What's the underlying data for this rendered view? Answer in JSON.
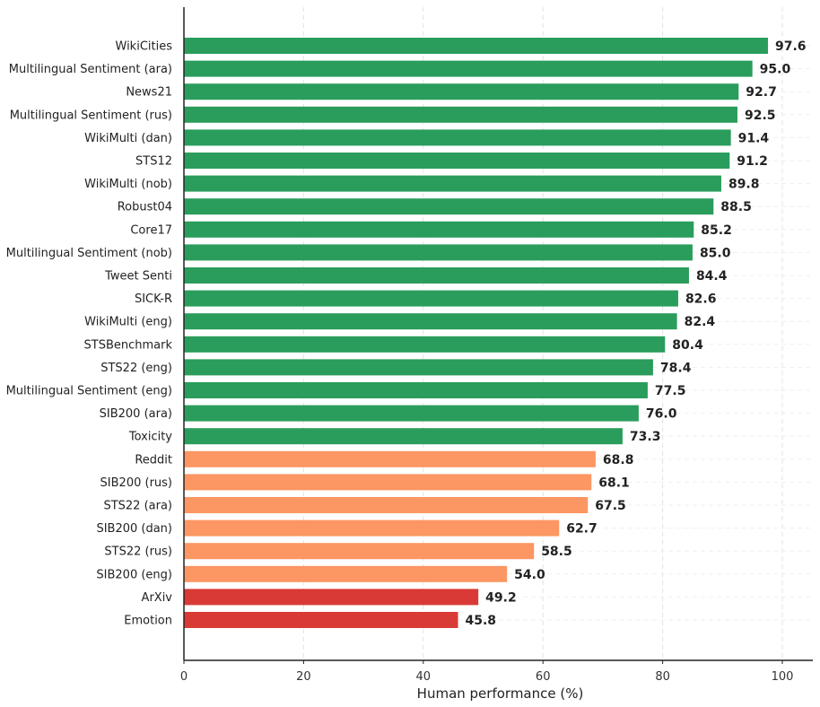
{
  "chart_data": {
    "type": "bar",
    "orientation": "horizontal",
    "title": "",
    "xlabel": "Human performance (%)",
    "ylabel": "",
    "xlim": [
      0,
      105
    ],
    "xticks": [
      0,
      20,
      40,
      60,
      80,
      100
    ],
    "grid": true,
    "categories": [
      "WikiCities",
      "Multilingual Sentiment (ara)",
      "News21",
      "Multilingual Sentiment (rus)",
      "WikiMulti (dan)",
      "STS12",
      "WikiMulti (nob)",
      "Robust04",
      "Core17",
      "Multilingual Sentiment (nob)",
      "Tweet Senti",
      "SICK-R",
      "WikiMulti (eng)",
      "STSBenchmark",
      "STS22 (eng)",
      "Multilingual Sentiment (eng)",
      "SIB200 (ara)",
      "Toxicity",
      "Reddit",
      "SIB200 (rus)",
      "STS22 (ara)",
      "SIB200 (dan)",
      "STS22 (rus)",
      "SIB200 (eng)",
      "ArXiv",
      "Emotion"
    ],
    "values": [
      97.6,
      95.0,
      92.7,
      92.5,
      91.4,
      91.2,
      89.8,
      88.5,
      85.2,
      85.0,
      84.4,
      82.6,
      82.4,
      80.4,
      78.4,
      77.5,
      76.0,
      73.3,
      68.8,
      68.1,
      67.5,
      62.7,
      58.5,
      54.0,
      49.2,
      45.8
    ],
    "value_labels": [
      "97.6",
      "95.0",
      "92.7",
      "92.5",
      "91.4",
      "91.2",
      "89.8",
      "88.5",
      "85.2",
      "85.0",
      "84.4",
      "82.6",
      "82.4",
      "80.4",
      "78.4",
      "77.5",
      "76.0",
      "73.3",
      "68.8",
      "68.1",
      "67.5",
      "62.7",
      "58.5",
      "54.0",
      "49.2",
      "45.8"
    ],
    "tick_labels": [
      "0",
      "20",
      "40",
      "60",
      "80",
      "100"
    ],
    "bar_color_groups": [
      {
        "min": 70,
        "color": "#2a9d5c"
      },
      {
        "min": 50,
        "color": "#fc9662"
      },
      {
        "min": 0,
        "color": "#d93a35"
      }
    ]
  }
}
